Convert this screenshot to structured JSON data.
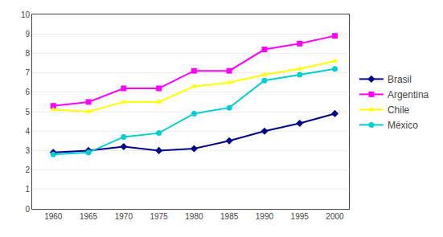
{
  "chart_data": {
    "type": "line",
    "x": [
      1960,
      1965,
      1970,
      1975,
      1980,
      1985,
      1990,
      1995,
      2000
    ],
    "series": [
      {
        "name": "Brasil",
        "color": "#00008B",
        "marker": "diamond",
        "values": [
          2.9,
          3.0,
          3.2,
          3.0,
          3.1,
          3.5,
          4.0,
          4.4,
          4.9
        ]
      },
      {
        "name": "Argentina",
        "color": "#FF00FF",
        "marker": "square",
        "values": [
          5.3,
          5.5,
          6.2,
          6.2,
          7.1,
          7.1,
          8.2,
          8.5,
          8.9
        ]
      },
      {
        "name": "Chile",
        "color": "#FFFF00",
        "marker": "triangle-up",
        "values": [
          5.1,
          5.0,
          5.5,
          5.5,
          6.3,
          6.5,
          6.9,
          7.2,
          7.6
        ]
      },
      {
        "name": "México",
        "color": "#00CED1",
        "marker": "circle",
        "values": [
          2.8,
          2.9,
          3.7,
          3.9,
          4.9,
          5.2,
          6.6,
          6.9,
          7.2
        ]
      }
    ],
    "xlim": [
      1957,
      2002
    ],
    "xticks": [
      1960,
      1965,
      1970,
      1975,
      1980,
      1985,
      1990,
      1995,
      2000
    ],
    "ylim": [
      0,
      10
    ],
    "yticks": [
      0,
      1,
      2,
      3,
      4,
      5,
      6,
      7,
      8,
      9,
      10
    ],
    "grid": true,
    "legend": "right"
  }
}
